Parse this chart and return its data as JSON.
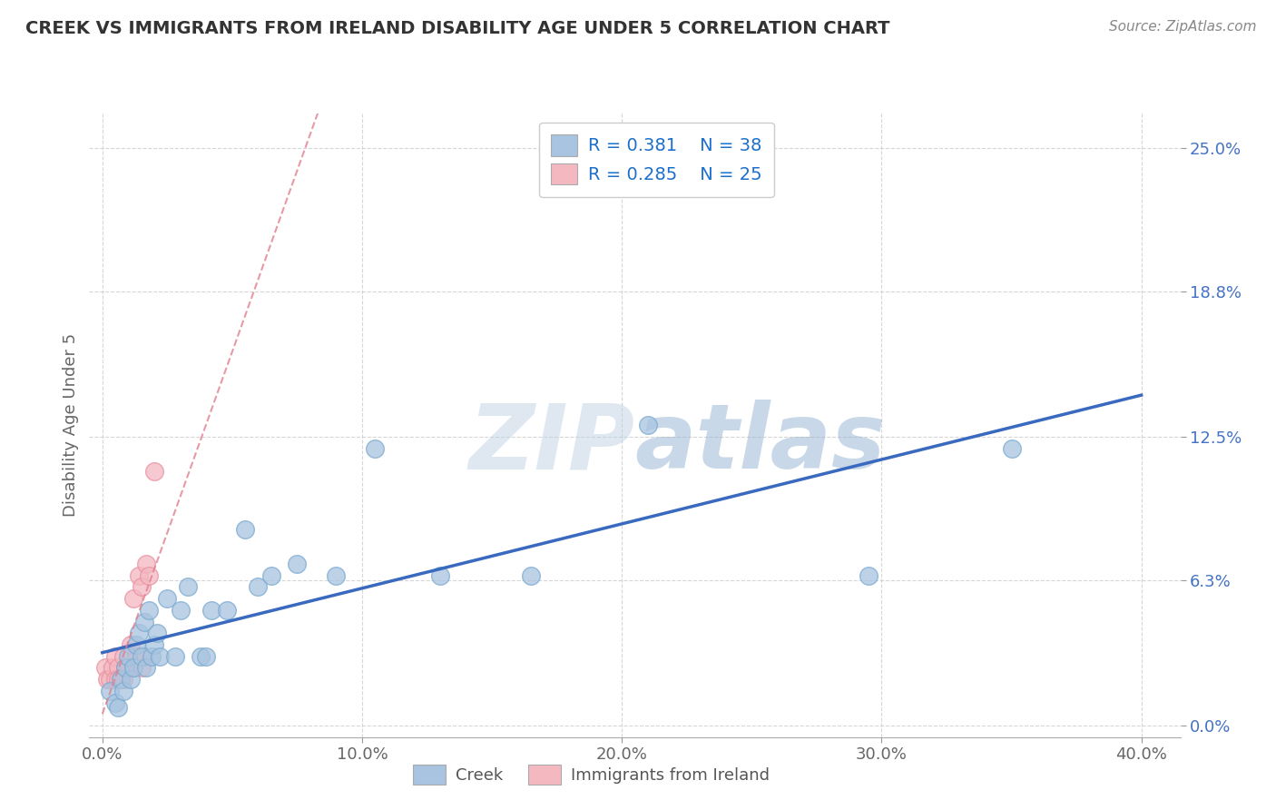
{
  "title": "CREEK VS IMMIGRANTS FROM IRELAND DISABILITY AGE UNDER 5 CORRELATION CHART",
  "source": "Source: ZipAtlas.com",
  "ylabel": "Disability Age Under 5",
  "xlim": [
    -0.005,
    0.415
  ],
  "ylim": [
    -0.005,
    0.265
  ],
  "xticks": [
    0.0,
    0.1,
    0.2,
    0.3,
    0.4
  ],
  "xticklabels": [
    "0.0%",
    "10.0%",
    "20.0%",
    "30.0%",
    "40.0%"
  ],
  "yticks": [
    0.0,
    0.063,
    0.125,
    0.188,
    0.25
  ],
  "yticklabels": [
    "0.0%",
    "6.3%",
    "12.5%",
    "18.8%",
    "25.0%"
  ],
  "creek_R": 0.381,
  "creek_N": 38,
  "ireland_R": 0.285,
  "ireland_N": 25,
  "creek_color": "#a8c4e0",
  "ireland_color": "#f4b8c1",
  "creek_edge_color": "#7aaad0",
  "ireland_edge_color": "#e890a0",
  "trend_creek_color": "#3a6abf",
  "trend_ireland_color": "#e08090",
  "watermark_color": "#c8d8ea",
  "creek_x": [
    0.003,
    0.005,
    0.006,
    0.007,
    0.008,
    0.009,
    0.01,
    0.011,
    0.012,
    0.013,
    0.014,
    0.015,
    0.016,
    0.017,
    0.018,
    0.019,
    0.02,
    0.021,
    0.022,
    0.025,
    0.028,
    0.03,
    0.033,
    0.038,
    0.04,
    0.042,
    0.048,
    0.055,
    0.06,
    0.065,
    0.075,
    0.09,
    0.105,
    0.13,
    0.165,
    0.21,
    0.295,
    0.35
  ],
  "creek_y": [
    0.015,
    0.01,
    0.008,
    0.02,
    0.015,
    0.025,
    0.03,
    0.02,
    0.025,
    0.035,
    0.04,
    0.03,
    0.045,
    0.025,
    0.05,
    0.03,
    0.035,
    0.04,
    0.03,
    0.055,
    0.03,
    0.05,
    0.06,
    0.03,
    0.03,
    0.05,
    0.05,
    0.085,
    0.06,
    0.065,
    0.07,
    0.065,
    0.12,
    0.065,
    0.065,
    0.13,
    0.065,
    0.12
  ],
  "ireland_x": [
    0.001,
    0.002,
    0.003,
    0.004,
    0.005,
    0.005,
    0.006,
    0.006,
    0.007,
    0.008,
    0.008,
    0.009,
    0.01,
    0.01,
    0.011,
    0.012,
    0.012,
    0.013,
    0.014,
    0.015,
    0.015,
    0.016,
    0.017,
    0.018,
    0.02
  ],
  "ireland_y": [
    0.025,
    0.02,
    0.02,
    0.025,
    0.02,
    0.03,
    0.025,
    0.02,
    0.02,
    0.02,
    0.03,
    0.025,
    0.025,
    0.025,
    0.035,
    0.025,
    0.055,
    0.03,
    0.065,
    0.025,
    0.06,
    0.03,
    0.07,
    0.065,
    0.11
  ],
  "background_color": "#ffffff",
  "grid_color": "#cccccc"
}
